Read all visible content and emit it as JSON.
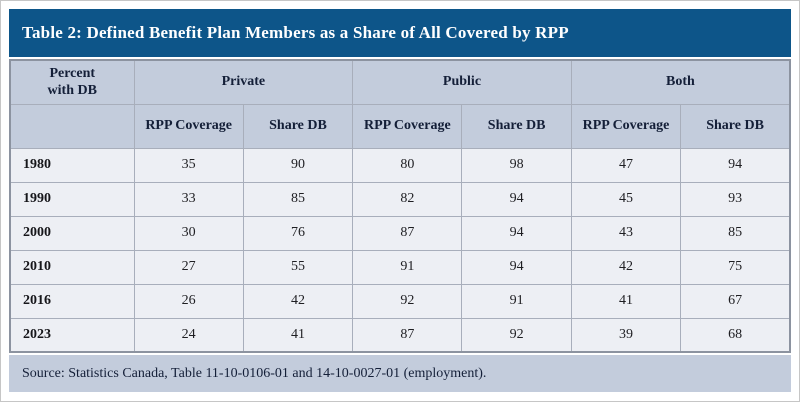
{
  "title": "Table 2: Defined Benefit Plan Members as a Share of All Covered by RPP",
  "colors": {
    "title_bar": "#0d5589",
    "header_bg": "#c3ccdc",
    "row_bg": "#edeff4",
    "header_text": "#141f38",
    "outer_border": "#8c93a0",
    "inner_border": "#a8aebb"
  },
  "table": {
    "corner_header": "Percent\nwith DB",
    "group_labels": [
      "Private",
      "Public",
      "Both"
    ],
    "subheaders": [
      "RPP Coverage",
      "Share DB",
      "RPP Coverage",
      "Share DB",
      "RPP Coverage",
      "Share DB"
    ],
    "rows": [
      {
        "year": "1980",
        "values": [
          35,
          90,
          80,
          98,
          47,
          94
        ]
      },
      {
        "year": "1990",
        "values": [
          33,
          85,
          82,
          94,
          45,
          93
        ]
      },
      {
        "year": "2000",
        "values": [
          30,
          76,
          87,
          94,
          43,
          85
        ]
      },
      {
        "year": "2010",
        "values": [
          27,
          55,
          91,
          94,
          42,
          75
        ]
      },
      {
        "year": "2016",
        "values": [
          26,
          42,
          92,
          91,
          41,
          67
        ]
      },
      {
        "year": "2023",
        "values": [
          24,
          41,
          87,
          92,
          39,
          68
        ]
      }
    ]
  },
  "source": "Source: Statistics Canada, Table 11-10-0106-01 and 14-10-0027-01 (employment)."
}
